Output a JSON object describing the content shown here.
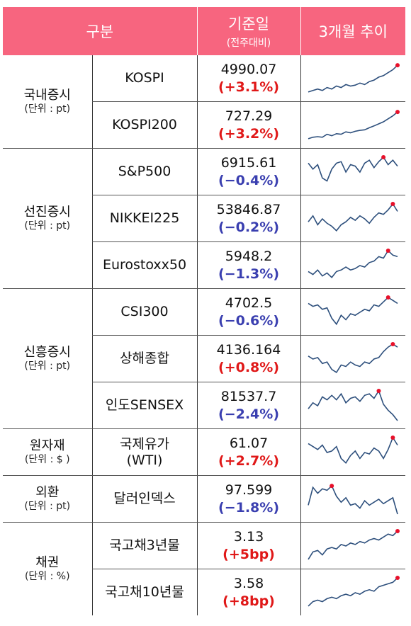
{
  "header": {
    "col1": "구분",
    "col2": "기준일",
    "col2_sub": "(전주대비)",
    "col3": "3개월 추이"
  },
  "groups": [
    {
      "name": "국내증시",
      "unit": "(단위 : pt)",
      "rows": [
        {
          "name": "KOSPI",
          "value": "4990.07",
          "change": "(+3.1%)",
          "dir": "up"
        },
        {
          "name": "KOSPI200",
          "value": "727.29",
          "change": "(+3.2%)",
          "dir": "up"
        }
      ]
    },
    {
      "name": "선진증시",
      "unit": "(단위 : pt)",
      "rows": [
        {
          "name": "S&P500",
          "value": "6915.61",
          "change": "(−0.4%)",
          "dir": "down"
        },
        {
          "name": "NIKKEI225",
          "value": "53846.87",
          "change": "(−0.2%)",
          "dir": "down"
        },
        {
          "name": "Eurostoxx50",
          "value": "5948.2",
          "change": "(−1.3%)",
          "dir": "down"
        }
      ]
    },
    {
      "name": "신흥증시",
      "unit": "(단위 : pt)",
      "rows": [
        {
          "name": "CSI300",
          "value": "4702.5",
          "change": "(−0.6%)",
          "dir": "down"
        },
        {
          "name": "상해종합",
          "value": "4136.164",
          "change": "(+0.8%)",
          "dir": "up"
        },
        {
          "name": "인도SENSEX",
          "value": "81537.7",
          "change": "(−2.4%)",
          "dir": "down"
        }
      ]
    },
    {
      "name": "원자재",
      "unit": "(단위 : $ )",
      "rows": [
        {
          "name": "국제유가",
          "name2": "(WTI)",
          "value": "61.07",
          "change": "(+2.7%)",
          "dir": "up"
        }
      ]
    },
    {
      "name": "외환",
      "unit": "(단위 : pt)",
      "rows": [
        {
          "name": "달러인덱스",
          "value": "97.599",
          "change": "(−1.8%)",
          "dir": "down"
        }
      ]
    },
    {
      "name": "채권",
      "unit": "(단위 : %)",
      "rows": [
        {
          "name": "국고채3년물",
          "value": "3.13",
          "change": "(+5bp)",
          "dir": "up"
        },
        {
          "name": "국고채10년물",
          "value": "3.58",
          "change": "(+8bp)",
          "dir": "up"
        }
      ]
    }
  ],
  "sparklines": {
    "kospi": [
      0.05,
      0.1,
      0.15,
      0.1,
      0.2,
      0.15,
      0.25,
      0.2,
      0.3,
      0.25,
      0.28,
      0.35,
      0.3,
      0.4,
      0.45,
      0.55,
      0.6,
      0.7,
      0.8,
      0.95
    ],
    "kospi200": [
      0.05,
      0.1,
      0.12,
      0.1,
      0.2,
      0.15,
      0.22,
      0.2,
      0.28,
      0.25,
      0.3,
      0.33,
      0.35,
      0.42,
      0.48,
      0.55,
      0.62,
      0.72,
      0.82,
      0.95
    ],
    "sp500": [
      0.8,
      0.6,
      0.75,
      0.3,
      0.2,
      0.6,
      0.8,
      0.85,
      0.5,
      0.75,
      0.7,
      0.5,
      0.8,
      0.9,
      0.65,
      0.85,
      1.0,
      0.75,
      0.9,
      0.7
    ],
    "nikkei": [
      0.4,
      0.6,
      0.3,
      0.5,
      0.35,
      0.25,
      0.1,
      0.3,
      0.4,
      0.55,
      0.45,
      0.6,
      0.5,
      0.35,
      0.55,
      0.7,
      0.65,
      0.8,
      1.0,
      0.75
    ],
    "eurostoxx": [
      0.3,
      0.2,
      0.35,
      0.15,
      0.25,
      0.1,
      0.3,
      0.35,
      0.45,
      0.35,
      0.4,
      0.5,
      0.45,
      0.6,
      0.65,
      0.8,
      0.75,
      1.0,
      0.85,
      0.8
    ],
    "csi300": [
      0.8,
      0.7,
      0.75,
      0.6,
      0.65,
      0.3,
      0.1,
      0.4,
      0.25,
      0.45,
      0.4,
      0.5,
      0.6,
      0.55,
      0.75,
      0.7,
      0.85,
      1.0,
      0.9,
      0.8
    ],
    "shanghai": [
      0.6,
      0.5,
      0.55,
      0.35,
      0.4,
      0.15,
      0.05,
      0.3,
      0.25,
      0.4,
      0.3,
      0.25,
      0.4,
      0.35,
      0.5,
      0.55,
      0.75,
      0.9,
      1.0,
      0.9
    ],
    "sensex": [
      0.4,
      0.6,
      0.5,
      0.8,
      0.7,
      0.85,
      0.7,
      0.9,
      0.6,
      0.75,
      0.8,
      0.65,
      0.85,
      0.9,
      0.75,
      1.0,
      0.55,
      0.35,
      0.2,
      0.0
    ],
    "wti": [
      0.8,
      0.7,
      0.6,
      0.75,
      0.5,
      0.55,
      0.7,
      0.3,
      0.15,
      0.4,
      0.55,
      0.3,
      0.5,
      0.45,
      0.65,
      0.55,
      0.3,
      0.6,
      1.0,
      0.75
    ],
    "dxy": [
      0.3,
      0.9,
      0.7,
      0.85,
      0.8,
      0.95,
      0.6,
      0.4,
      0.55,
      0.3,
      0.35,
      0.2,
      0.45,
      0.3,
      0.4,
      0.5,
      0.35,
      0.45,
      0.55,
      0.0
    ],
    "ktb3": [
      0.05,
      0.3,
      0.35,
      0.2,
      0.4,
      0.45,
      0.4,
      0.55,
      0.5,
      0.6,
      0.55,
      0.65,
      0.6,
      0.7,
      0.75,
      0.7,
      0.8,
      0.9,
      0.85,
      1.0
    ],
    "ktb10": [
      0.05,
      0.2,
      0.25,
      0.2,
      0.3,
      0.35,
      0.3,
      0.4,
      0.45,
      0.4,
      0.5,
      0.45,
      0.55,
      0.6,
      0.55,
      0.7,
      0.75,
      0.8,
      0.85,
      1.0
    ]
  }
}
